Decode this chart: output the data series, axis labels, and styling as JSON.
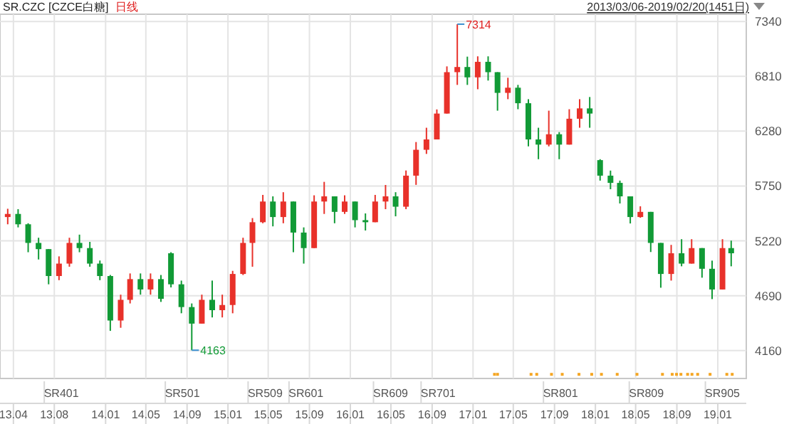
{
  "chart_data": {
    "type": "candlestick",
    "title": "SR.CZC [CZCE白糖]",
    "subtitle": "日线",
    "annotations": [
      "2013/03/06-2019/02/20(1451日)",
      {
        "text": "7314",
        "x": "2016-11-15",
        "y": 7314
      },
      {
        "text": "4163",
        "x": "2014-09-15",
        "y": 4163
      }
    ],
    "x": [
      "2013-03-15",
      "2013-04-15",
      "2013-05-15",
      "2013-06-15",
      "2013-07-15",
      "2013-08-15",
      "2013-09-15",
      "2013-10-15",
      "2013-11-15",
      "2013-12-15",
      "2014-01-15",
      "2014-02-15",
      "2014-03-15",
      "2014-04-15",
      "2014-05-15",
      "2014-06-15",
      "2014-07-15",
      "2014-08-15",
      "2014-09-15",
      "2014-10-15",
      "2014-11-15",
      "2014-12-15",
      "2015-01-15",
      "2015-02-15",
      "2015-03-15",
      "2015-04-15",
      "2015-05-15",
      "2015-06-15",
      "2015-07-15",
      "2015-08-15",
      "2015-09-15",
      "2015-10-15",
      "2015-11-15",
      "2015-12-15",
      "2016-01-15",
      "2016-02-15",
      "2016-03-15",
      "2016-04-15",
      "2016-05-15",
      "2016-06-15",
      "2016-07-15",
      "2016-08-15",
      "2016-09-15",
      "2016-10-15",
      "2016-11-15",
      "2016-12-15",
      "2017-01-15",
      "2017-02-15",
      "2017-03-15",
      "2017-04-15",
      "2017-05-15",
      "2017-06-15",
      "2017-07-15",
      "2017-08-15",
      "2017-09-15",
      "2017-10-15",
      "2017-11-15",
      "2017-12-15",
      "2018-01-15",
      "2018-02-15",
      "2018-03-15",
      "2018-04-15",
      "2018-05-15",
      "2018-06-15",
      "2018-07-15",
      "2018-08-15",
      "2018-09-15",
      "2018-10-15",
      "2018-11-15",
      "2018-12-15",
      "2019-01-15",
      "2019-02-10"
    ],
    "ohlc": [
      [
        5450,
        5530,
        5380,
        5480
      ],
      [
        5480,
        5526,
        5350,
        5380
      ],
      [
        5380,
        5390,
        5110,
        5200
      ],
      [
        5200,
        5250,
        5040,
        5140
      ],
      [
        5140,
        5140,
        4800,
        4880
      ],
      [
        4880,
        5070,
        4840,
        5000
      ],
      [
        5000,
        5250,
        4970,
        5200
      ],
      [
        5200,
        5280,
        5110,
        5150
      ],
      [
        5150,
        5210,
        4970,
        5000
      ],
      [
        5000,
        5030,
        4840,
        4880
      ],
      [
        4880,
        4890,
        4350,
        4450
      ],
      [
        4450,
        4700,
        4380,
        4650
      ],
      [
        4650,
        4905,
        4615,
        4850
      ],
      [
        4850,
        4905,
        4700,
        4750
      ],
      [
        4750,
        4905,
        4700,
        4850
      ],
      [
        4850,
        4890,
        4630,
        4660
      ],
      [
        5100,
        5110,
        4770,
        4800
      ],
      [
        4800,
        4836,
        4520,
        4580
      ],
      [
        4580,
        4615,
        4163,
        4420
      ],
      [
        4420,
        4700,
        4420,
        4650
      ],
      [
        4650,
        4836,
        4480,
        4550
      ],
      [
        4550,
        4700,
        4480,
        4600
      ],
      [
        4600,
        4930,
        4520,
        4900
      ],
      [
        4900,
        5250,
        4890,
        5200
      ],
      [
        5200,
        5440,
        4970,
        5400
      ],
      [
        5400,
        5664,
        5390,
        5600
      ],
      [
        5600,
        5650,
        5360,
        5450
      ],
      [
        5450,
        5690,
        5390,
        5600
      ],
      [
        5600,
        5600,
        5110,
        5300
      ],
      [
        5300,
        5350,
        5000,
        5150
      ],
      [
        5150,
        5660,
        5150,
        5600
      ],
      [
        5600,
        5790,
        5480,
        5650
      ],
      [
        5650,
        5650,
        5390,
        5500
      ],
      [
        5500,
        5660,
        5480,
        5600
      ],
      [
        5600,
        5600,
        5350,
        5420
      ],
      [
        5420,
        5485,
        5320,
        5400
      ],
      [
        5400,
        5664,
        5400,
        5600
      ],
      [
        5600,
        5760,
        5526,
        5650
      ],
      [
        5650,
        5690,
        5457,
        5550
      ],
      [
        5550,
        5900,
        5526,
        5850
      ],
      [
        5850,
        6175,
        5761,
        6100
      ],
      [
        6100,
        6313,
        6060,
        6200
      ],
      [
        6200,
        6490,
        6200,
        6450
      ],
      [
        6450,
        6906,
        6450,
        6850
      ],
      [
        6850,
        7314,
        6727,
        6900
      ],
      [
        6900,
        7000,
        6727,
        6800
      ],
      [
        6800,
        7003,
        6685,
        6950
      ],
      [
        6950,
        7003,
        6769,
        6850
      ],
      [
        6850,
        6850,
        6478,
        6650
      ],
      [
        6650,
        6796,
        6589,
        6700
      ],
      [
        6700,
        6727,
        6492,
        6550
      ],
      [
        6550,
        6589,
        6133,
        6200
      ],
      [
        6200,
        6313,
        6009,
        6150
      ],
      [
        6150,
        6478,
        6133,
        6250
      ],
      [
        6250,
        6271,
        6009,
        6150
      ],
      [
        6150,
        6492,
        6150,
        6400
      ],
      [
        6400,
        6589,
        6313,
        6500
      ],
      [
        6500,
        6610,
        6313,
        6450
      ],
      [
        6000,
        6009,
        5802,
        5850
      ],
      [
        5850,
        5899,
        5719,
        5780
      ],
      [
        5780,
        5802,
        5581,
        5650
      ],
      [
        5650,
        5650,
        5388,
        5450
      ],
      [
        5450,
        5554,
        5443,
        5500
      ],
      [
        5500,
        5500,
        5112,
        5200
      ],
      [
        5200,
        5200,
        4767,
        4900
      ],
      [
        4900,
        5181,
        4836,
        5100
      ],
      [
        5100,
        5236,
        4974,
        5000
      ],
      [
        5000,
        5236,
        5000,
        5150
      ],
      [
        5150,
        5150,
        4864,
        4950
      ],
      [
        4950,
        5029,
        4657,
        4750
      ],
      [
        4750,
        5236,
        4750,
        5150
      ],
      [
        5150,
        5222,
        4974,
        5100
      ]
    ],
    "series": [
      {
        "type": "scatter",
        "color": "#f5a623",
        "marker": "square",
        "x": [
          "2017-03-06",
          "2017-03-15",
          "2017-06-23",
          "2017-07-10",
          "2017-08-23",
          "2017-09-24",
          "2017-11-13",
          "2017-12-21",
          "2018-01-19",
          "2018-03-07",
          "2018-05-05",
          "2018-07-20",
          "2018-08-18",
          "2018-08-31",
          "2018-09-13",
          "2018-10-03",
          "2018-10-16",
          "2018-11-02",
          "2018-12-09",
          "2019-01-28",
          "2019-02-13"
        ],
        "values": [
          3930,
          3930,
          3930,
          3930,
          3930,
          3930,
          3930,
          3930,
          3930,
          3930,
          3930,
          3930,
          3930,
          3930,
          3930,
          3930,
          3930,
          3930,
          3930,
          3930,
          3930
        ]
      }
    ],
    "xlim": [
      "2013-02-20",
      "2019-03-27"
    ],
    "xticks": [
      {
        "value": "2013-04-01",
        "label": "13.04"
      },
      {
        "value": "2013-08-01",
        "label": "13.08"
      },
      {
        "value": "2014-01-01",
        "label": "14.01"
      },
      {
        "value": "2014-05-01",
        "label": "14.05"
      },
      {
        "value": "2014-09-01",
        "label": "14.09"
      },
      {
        "value": "2015-01-01",
        "label": "15.01"
      },
      {
        "value": "2015-05-01",
        "label": "15.05"
      },
      {
        "value": "2015-09-01",
        "label": "15.09"
      },
      {
        "value": "2016-01-01",
        "label": "16.01"
      },
      {
        "value": "2016-05-01",
        "label": "16.05"
      },
      {
        "value": "2016-09-01",
        "label": "16.09"
      },
      {
        "value": "2017-01-01",
        "label": "17.01"
      },
      {
        "value": "2017-05-01",
        "label": "17.05"
      },
      {
        "value": "2017-09-01",
        "label": "17.09"
      },
      {
        "value": "2018-01-01",
        "label": "18.01"
      },
      {
        "value": "2018-05-01",
        "label": "18.05"
      },
      {
        "value": "2018-09-01",
        "label": "18.09"
      },
      {
        "value": "2019-01-01",
        "label": "19.01"
      }
    ],
    "x2lim": [
      "2013-02-20",
      "2019-03-27"
    ],
    "x2ticks": [
      {
        "value": "2013-08-22",
        "label": "SR401"
      },
      {
        "value": "2014-08-18",
        "label": "SR501"
      },
      {
        "value": "2015-04-22",
        "label": "SR509"
      },
      {
        "value": "2015-08-22",
        "label": "SR601"
      },
      {
        "value": "2016-04-30",
        "label": "SR609"
      },
      {
        "value": "2016-09-19",
        "label": "SR701"
      },
      {
        "value": "2017-09-19",
        "label": "SR801"
      },
      {
        "value": "2018-06-02",
        "label": "SR809"
      },
      {
        "value": "2019-01-15",
        "label": "SR905"
      }
    ],
    "ylim": [
      3890,
      7410
    ],
    "yticks": [
      4160,
      4690,
      5220,
      5750,
      6280,
      6810,
      7340
    ],
    "grid": true
  }
}
